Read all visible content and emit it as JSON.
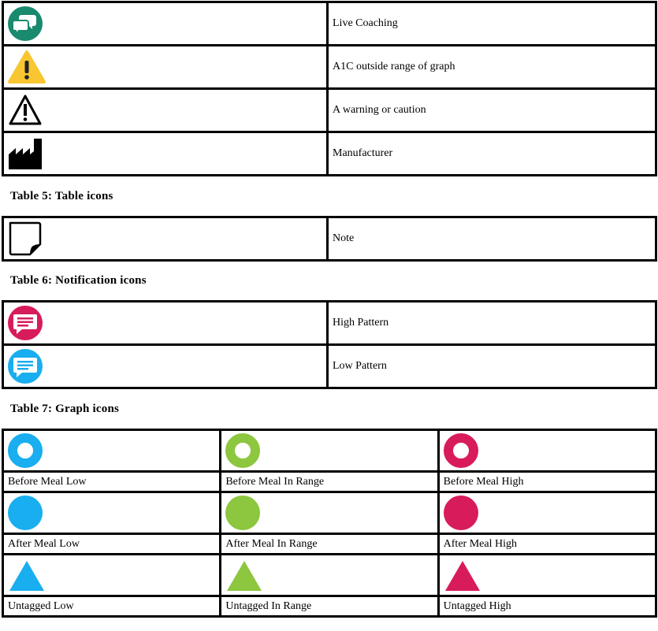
{
  "table4": {
    "rows": [
      {
        "icon": "live-coaching-icon",
        "label": "Live Coaching"
      },
      {
        "icon": "a1c-warning-icon",
        "label": "A1C outside range of graph"
      },
      {
        "icon": "caution-icon",
        "label": "A warning or caution"
      },
      {
        "icon": "manufacturer-icon",
        "label": "Manufacturer"
      }
    ]
  },
  "table5": {
    "caption": "Table 5: Table icons",
    "rows": [
      {
        "icon": "note-icon",
        "label": "Note"
      }
    ]
  },
  "table6": {
    "caption": "Table 6: Notification icons",
    "rows": [
      {
        "icon": "high-pattern-icon",
        "label": "High Pattern"
      },
      {
        "icon": "low-pattern-icon",
        "label": "Low Pattern"
      }
    ]
  },
  "table7": {
    "caption": "Table 7: Graph icons",
    "labels": [
      [
        "Before Meal Low",
        "Before Meal In Range",
        "Before Meal High"
      ],
      [
        "After Meal Low",
        "After Meal In Range",
        "After Meal High"
      ],
      [
        "Untagged Low",
        "Untagged In Range",
        "Untagged High"
      ]
    ]
  },
  "colors": {
    "teal": "#1a8a6e",
    "yellow": "#f8c630",
    "magenta": "#d81b5b",
    "blue": "#19aeef",
    "green": "#8dc63f"
  }
}
